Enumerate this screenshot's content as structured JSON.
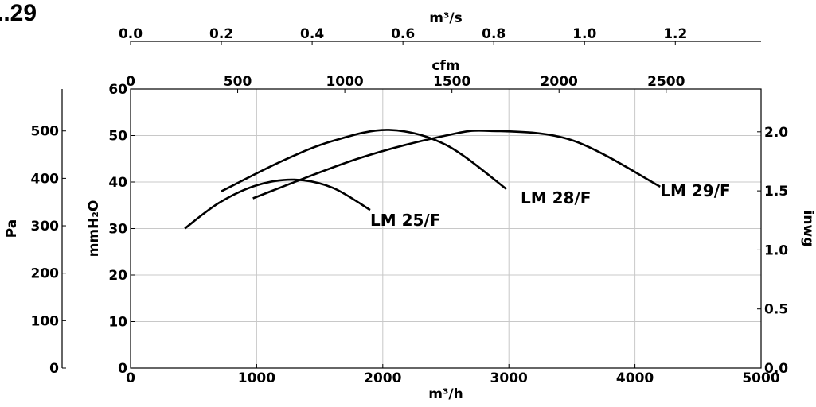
{
  "title": "..29",
  "chart_data": {
    "type": "line",
    "grid": true,
    "x_axis": {
      "label": "m³/h",
      "lim": [
        0,
        5000
      ],
      "ticks": [
        0,
        1000,
        2000,
        3000,
        4000,
        5000
      ],
      "tick_labels": [
        "0",
        "1000",
        "2000",
        "3000",
        "4000",
        "5000"
      ]
    },
    "x_top_axes": [
      {
        "label": "cfm",
        "ticks": [
          0,
          500,
          1000,
          1500,
          2000,
          2500
        ],
        "tick_labels": [
          "0",
          "500",
          "1000",
          "1500",
          "2000",
          "2500"
        ],
        "factor": 0.5886
      },
      {
        "label": "m³/s",
        "ticks": [
          0.0,
          0.2,
          0.4,
          0.6,
          0.8,
          1.0,
          1.2
        ],
        "tick_labels": [
          "0.0",
          "0.2",
          "0.4",
          "0.6",
          "0.8",
          "1.0",
          "1.2"
        ],
        "factor": 0.00027778
      }
    ],
    "y_axis": {
      "label": "mmH₂O",
      "lim": [
        0,
        60
      ],
      "ticks": [
        0,
        10,
        20,
        30,
        40,
        50,
        60
      ],
      "tick_labels": [
        "0",
        "10",
        "20",
        "30",
        "40",
        "50",
        "60"
      ]
    },
    "y_left_outer_axis": {
      "label": "Pa",
      "ticks": [
        0,
        100,
        200,
        300,
        400,
        500
      ],
      "tick_labels": [
        "0",
        "100",
        "200",
        "300",
        "400",
        "500"
      ],
      "factor": 9.80665
    },
    "y_right_axis": {
      "label": "inwg",
      "ticks": [
        0.0,
        0.5,
        1.0,
        1.5,
        2.0
      ],
      "tick_labels": [
        "0.0",
        "0.5",
        "1.0",
        "1.5",
        "2.0"
      ],
      "factor": 0.03937
    },
    "series": [
      {
        "name": "LM 25/F",
        "x": [
          430,
          700,
          1000,
          1300,
          1600,
          1900
        ],
        "y": [
          30,
          35.5,
          39.3,
          40.5,
          38.8,
          34
        ]
      },
      {
        "name": "LM 28/F",
        "x": [
          720,
          1200,
          1600,
          2050,
          2500,
          2980
        ],
        "y": [
          38,
          44.5,
          48.8,
          51.2,
          48,
          38.5
        ]
      },
      {
        "name": "LM 29/F",
        "x": [
          970,
          1800,
          2500,
          2850,
          3500,
          4200
        ],
        "y": [
          36.5,
          45,
          50,
          51,
          49,
          39
        ]
      }
    ]
  }
}
